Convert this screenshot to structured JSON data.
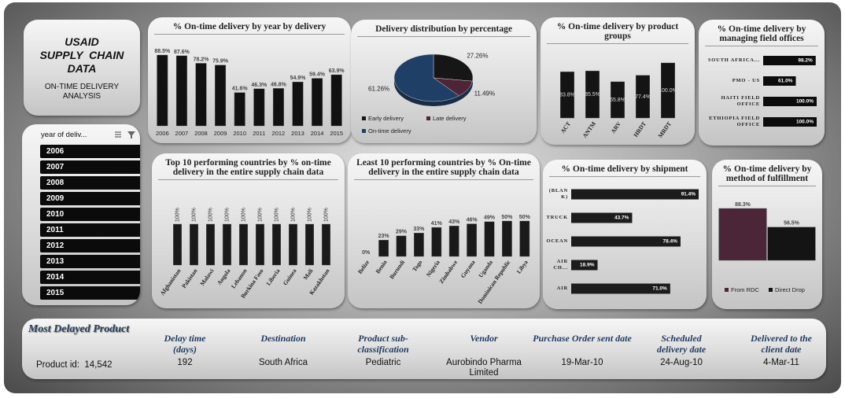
{
  "header": {
    "title_lines": [
      "USAID",
      "SUPPLY  CHAIN",
      "DATA"
    ],
    "subtitle_lines": [
      "ON-TIME DELIVERY",
      "ANALYSIS"
    ]
  },
  "slicer": {
    "title": "year of deliv...",
    "items": [
      "2006",
      "2007",
      "2008",
      "2009",
      "2010",
      "2011",
      "2012",
      "2013",
      "2014",
      "2015"
    ]
  },
  "chart_data": [
    {
      "type": "bar",
      "title": "% On-time delivery by year by delivery",
      "categories": [
        "2006",
        "2007",
        "2008",
        "2009",
        "2010",
        "2011",
        "2012",
        "2013",
        "2014",
        "2015"
      ],
      "values": [
        88.5,
        87.6,
        78.2,
        75.9,
        41.6,
        46.3,
        46.8,
        54.9,
        59.4,
        63.9
      ],
      "value_labels": [
        "88.5%",
        "87.6%",
        "78.2%",
        "75.9%",
        "41.6%",
        "46.3%",
        "46.8%",
        "54.9%",
        "59.4%",
        "63.9%"
      ],
      "color": "#111111"
    },
    {
      "type": "pie",
      "title": "Delivery distribution by percentage",
      "categories": [
        "Early delivery",
        "Late delivery",
        "On-time delivery"
      ],
      "values": [
        27.26,
        11.49,
        61.26
      ],
      "value_labels": [
        "27.26%",
        "11.49%",
        "61.26%"
      ],
      "colors": [
        "#161616",
        "#4e2436",
        "#1f3f66"
      ],
      "legend": "bottom"
    },
    {
      "type": "bar",
      "title": "% On-time delivery by product groups",
      "categories": [
        "ACT",
        "ANTM",
        "ARV",
        "HRDT",
        "MRDT"
      ],
      "values": [
        83.8,
        85.5,
        65.8,
        77.4,
        100.0
      ],
      "value_labels": [
        "83.8%",
        "85.5%",
        "65.8%",
        "77.4%",
        "100.0%"
      ],
      "color": "#141414"
    },
    {
      "type": "barh",
      "title": "% On-time delivery by managing field offices",
      "categories": [
        "SOUTH AFRICA...",
        "PMO - US",
        "HAITI FIELD OFFICE",
        "ETHIOPIA FIELD OFFICE"
      ],
      "values": [
        98.2,
        61.0,
        100.0,
        100.0
      ],
      "value_labels": [
        "98.2%",
        "61.0%",
        "100.0%",
        "100.0%"
      ],
      "color": "#0c0c0c"
    },
    {
      "type": "bar",
      "title": "Top 10 performing countries by % on-time delivery in the entire supply chain data",
      "categories": [
        "Afghanistan",
        "Pakistan",
        "Malawi",
        "Angola",
        "Lebanon",
        "Burkina Faso",
        "Liberia",
        "Guinea",
        "Mali",
        "Kazakhstan"
      ],
      "values": [
        100,
        100,
        100,
        100,
        100,
        100,
        100,
        100,
        100,
        100
      ],
      "value_labels": [
        "100%",
        "100%",
        "100%",
        "100%",
        "100%",
        "100%",
        "100%",
        "100%",
        "100%",
        "100%"
      ],
      "color": "#1a1a1a"
    },
    {
      "type": "bar",
      "title": "Least 10 performing countries by % On-time delivery in the entire supply chain data",
      "categories": [
        "Belize",
        "Benin",
        "Burundi",
        "Togo",
        "Nigeria",
        "Zimbabwe",
        "Guyana",
        "Uganda",
        "Dominican Republic",
        "Libya"
      ],
      "values": [
        0,
        23,
        29,
        33,
        41,
        43,
        46,
        49,
        50,
        50
      ],
      "value_labels": [
        "0%",
        "23%",
        "29%",
        "33%",
        "41%",
        "43%",
        "46%",
        "49%",
        "50%",
        "50%"
      ],
      "color": "#1a1a1a"
    },
    {
      "type": "barh",
      "title": "% On-time delivery by shipment",
      "categories": [
        "(BLANK)",
        "TRUCK",
        "OCEAN",
        "AIR CH...",
        "AIR"
      ],
      "values": [
        91.4,
        43.7,
        78.4,
        18.9,
        71.0
      ],
      "value_labels": [
        "91.4%",
        "43.7%",
        "78.4%",
        "18.9%",
        "71.0%"
      ],
      "color": "#1c1c1c"
    },
    {
      "type": "bar",
      "title": "% On-time delivery by method of fulfillment",
      "categories": [
        "From RDC",
        "Direct Drop"
      ],
      "values": [
        88.3,
        56.5
      ],
      "value_labels": [
        "88.3%",
        "56.5%"
      ],
      "colors": [
        "#4a2638",
        "#141414"
      ],
      "legend": "bottom"
    }
  ],
  "most_delayed": {
    "title": "Most Delayed Product",
    "product_id_label": "Product id:",
    "product_id": "14,542",
    "fields": [
      {
        "label": "Delay time (days)",
        "value": "192"
      },
      {
        "label": "Destination",
        "value": "South Africa"
      },
      {
        "label": "Product sub-classification",
        "value": "Pediatric"
      },
      {
        "label": "Vendor",
        "value": "Aurobindo Pharma Limited"
      },
      {
        "label": "Purchase Order sent date",
        "value": "19-Mar-10"
      },
      {
        "label": "Scheduled delivery date",
        "value": "24-Aug-10"
      },
      {
        "label": "Delivered to the client date",
        "value": "4-Mar-11"
      }
    ]
  }
}
